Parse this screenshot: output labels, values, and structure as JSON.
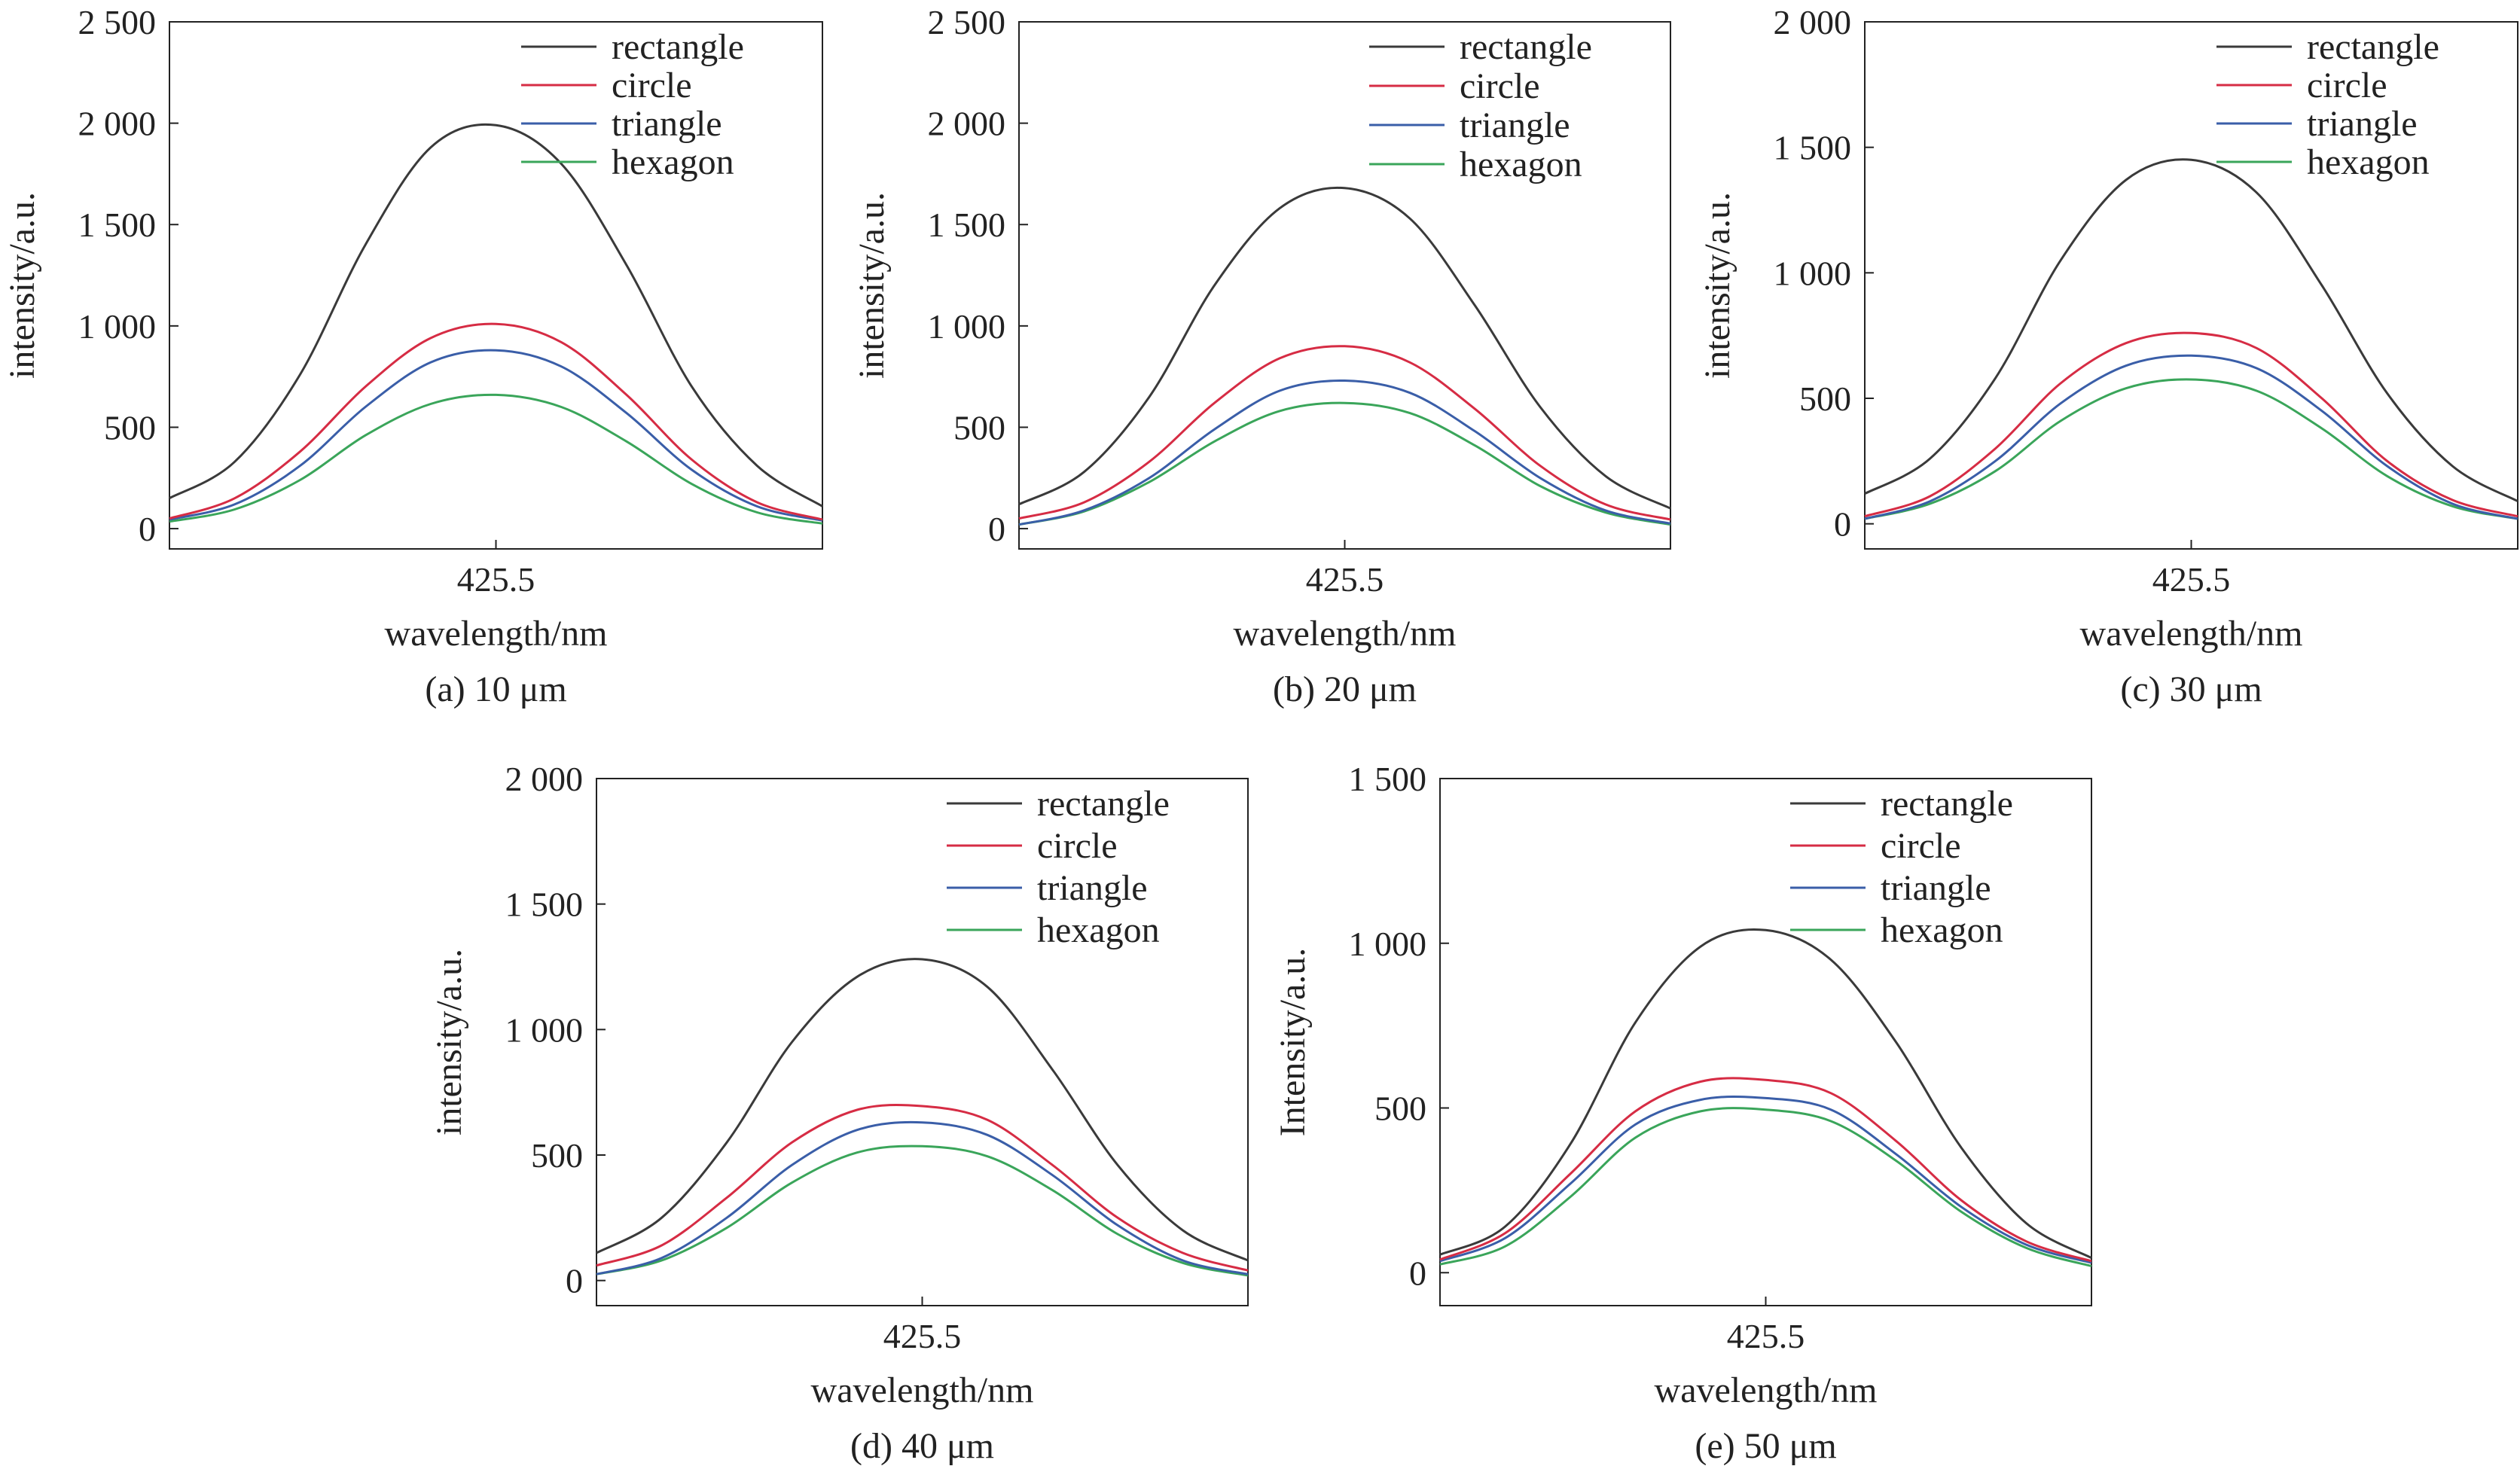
{
  "figure": {
    "background": "#ffffff"
  },
  "colors": {
    "rectangle": "#3a3a3a",
    "circle": "#d62c44",
    "triangle": "#3a5ea8",
    "hexagon": "#3aa55a"
  },
  "chart_data": [
    {
      "type": "line",
      "caption": "(a) 10 μm",
      "xlabel": "wavelength/nm",
      "ylabel": "intensity/a.u.",
      "xtick": "425.5",
      "ylim": [
        -100,
        2500
      ],
      "yticks": [
        0,
        500,
        1000,
        1500,
        2000,
        2500
      ],
      "ytick_labels": [
        "0",
        "500",
        "1 000",
        "1 500",
        "2 000",
        "2 500"
      ],
      "legend": "top-right",
      "x": [
        -2.5,
        -2.0,
        -1.5,
        -1.0,
        -0.5,
        0.0,
        0.5,
        1.0,
        1.5,
        2.0,
        2.5
      ],
      "series": [
        {
          "name": "rectangle",
          "values": [
            150,
            330,
            760,
            1400,
            1880,
            1990,
            1800,
            1300,
            700,
            310,
            110
          ]
        },
        {
          "name": "circle",
          "values": [
            50,
            150,
            380,
            700,
            940,
            1010,
            920,
            660,
            340,
            130,
            45
          ]
        },
        {
          "name": "triangle",
          "values": [
            45,
            120,
            310,
            600,
            820,
            880,
            800,
            570,
            290,
            110,
            40
          ]
        },
        {
          "name": "hexagon",
          "values": [
            35,
            95,
            240,
            460,
            615,
            660,
            600,
            430,
            220,
            80,
            25
          ]
        }
      ]
    },
    {
      "type": "line",
      "caption": "(b) 20 μm",
      "xlabel": "wavelength/nm",
      "ylabel": "intensity/a.u.",
      "xtick": "425.5",
      "ylim": [
        -100,
        2500
      ],
      "yticks": [
        0,
        500,
        1000,
        1500,
        2000,
        2500
      ],
      "ytick_labels": [
        "0",
        "500",
        "1 000",
        "1 500",
        "2 000",
        "2 500"
      ],
      "legend": "top-right",
      "x": [
        -2.5,
        -2.0,
        -1.5,
        -1.0,
        -0.5,
        0.0,
        0.5,
        1.0,
        1.5,
        2.0,
        2.5
      ],
      "series": [
        {
          "name": "rectangle",
          "values": [
            120,
            280,
            650,
            1200,
            1580,
            1680,
            1530,
            1100,
            600,
            260,
            100
          ]
        },
        {
          "name": "circle",
          "values": [
            50,
            130,
            330,
            620,
            840,
            900,
            820,
            590,
            310,
            120,
            45
          ]
        },
        {
          "name": "triangle",
          "values": [
            20,
            90,
            250,
            490,
            680,
            730,
            670,
            480,
            250,
            90,
            25
          ]
        },
        {
          "name": "hexagon",
          "values": [
            20,
            85,
            230,
            430,
            580,
            620,
            570,
            410,
            210,
            80,
            20
          ]
        }
      ]
    },
    {
      "type": "line",
      "caption": "(c) 30 μm",
      "xlabel": "wavelength/nm",
      "ylabel": "intensity/a.u.",
      "xtick": "425.5",
      "ylim": [
        -100,
        2000
      ],
      "yticks": [
        0,
        500,
        1000,
        1500,
        2000
      ],
      "ytick_labels": [
        "0",
        "500",
        "1 000",
        "1 500",
        "2 000"
      ],
      "legend": "top-right",
      "x": [
        -2.5,
        -2.0,
        -1.5,
        -1.0,
        -0.5,
        0.0,
        0.5,
        1.0,
        1.5,
        2.0,
        2.5
      ],
      "series": [
        {
          "name": "rectangle",
          "values": [
            120,
            260,
            580,
            1050,
            1370,
            1450,
            1320,
            950,
            520,
            230,
            90
          ]
        },
        {
          "name": "circle",
          "values": [
            30,
            110,
            300,
            560,
            720,
            760,
            700,
            500,
            250,
            95,
            30
          ]
        },
        {
          "name": "triangle",
          "values": [
            20,
            90,
            250,
            480,
            630,
            670,
            620,
            450,
            230,
            80,
            20
          ]
        },
        {
          "name": "hexagon",
          "values": [
            20,
            80,
            210,
            410,
            540,
            575,
            530,
            380,
            190,
            70,
            20
          ]
        }
      ]
    },
    {
      "type": "line",
      "caption": "(d) 40 μm",
      "xlabel": "wavelength/nm",
      "ylabel": "intensity/a.u.",
      "xtick": "425.5",
      "ylim": [
        -100,
        2000
      ],
      "yticks": [
        0,
        500,
        1000,
        1500,
        2000
      ],
      "ytick_labels": [
        "0",
        "500",
        "1 000",
        "1 500",
        "2 000"
      ],
      "legend": "top-right",
      "x": [
        -2.5,
        -2.0,
        -1.5,
        -1.0,
        -0.5,
        0.0,
        0.5,
        1.0,
        1.5,
        2.0,
        2.5
      ],
      "series": [
        {
          "name": "rectangle",
          "values": [
            110,
            250,
            550,
            950,
            1210,
            1280,
            1170,
            840,
            460,
            200,
            80
          ]
        },
        {
          "name": "circle",
          "values": [
            60,
            140,
            330,
            550,
            680,
            695,
            640,
            460,
            250,
            110,
            40
          ]
        },
        {
          "name": "triangle",
          "values": [
            25,
            90,
            250,
            460,
            600,
            630,
            580,
            420,
            220,
            80,
            25
          ]
        },
        {
          "name": "hexagon",
          "values": [
            25,
            80,
            210,
            390,
            510,
            535,
            495,
            360,
            185,
            70,
            20
          ]
        }
      ]
    },
    {
      "type": "line",
      "caption": "(e) 50 μm",
      "xlabel": "wavelength/nm",
      "ylabel": "Intensity/a.u.",
      "xtick": "425.5",
      "ylim": [
        -100,
        1500
      ],
      "yticks": [
        0,
        500,
        1000,
        1500
      ],
      "ytick_labels": [
        "0",
        "500",
        "1 000",
        "1 500"
      ],
      "legend": "top-right",
      "x": [
        -2.5,
        -2.0,
        -1.5,
        -1.0,
        -0.5,
        0.0,
        0.5,
        1.0,
        1.5,
        2.0,
        2.5
      ],
      "series": [
        {
          "name": "rectangle",
          "values": [
            55,
            140,
            390,
            760,
            990,
            1040,
            950,
            700,
            380,
            150,
            45
          ]
        },
        {
          "name": "circle",
          "values": [
            40,
            120,
            300,
            490,
            580,
            585,
            545,
            400,
            220,
            95,
            35
          ]
        },
        {
          "name": "triangle",
          "values": [
            35,
            105,
            270,
            450,
            525,
            530,
            495,
            360,
            200,
            85,
            30
          ]
        },
        {
          "name": "hexagon",
          "values": [
            25,
            80,
            230,
            410,
            490,
            495,
            460,
            340,
            185,
            75,
            20
          ]
        }
      ]
    }
  ]
}
